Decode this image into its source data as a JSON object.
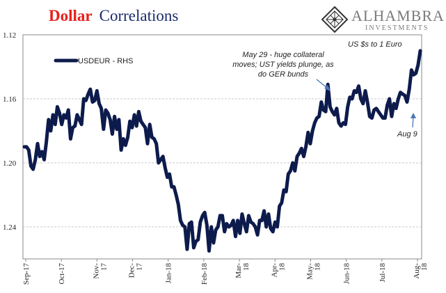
{
  "header": {
    "title_part1": "Dollar",
    "title_part2": "Correlations",
    "brand_name": "ALHAMBRA",
    "brand_sub": "INVESTMENTS"
  },
  "colors": {
    "line": "#0d1b4c",
    "title_red": "#e8211c",
    "title_blue": "#1a2b6b",
    "arrow": "#4a78b8"
  },
  "chart_data": {
    "type": "line",
    "title": "Dollar Correlations",
    "subtitle": "US $s to 1 Euro",
    "y_axis_side": "left",
    "y_inverted": true,
    "ylim": [
      1.12,
      1.26
    ],
    "y_ticks": [
      "1.12",
      "1.16",
      "1.20",
      "1.24"
    ],
    "x_ticks": [
      "Sep-17",
      "Oct-17",
      "Nov-17",
      "Dec-17",
      "Jan-18",
      "Feb-18",
      "Mar-18",
      "Apr-18",
      "May-18",
      "Jun-18",
      "Jul-18",
      "Aug-18"
    ],
    "grid": "horizontal dashed",
    "legend": "top-left",
    "series": [
      {
        "name": "USDEUR - RHS",
        "values": [
          1.19,
          1.19,
          1.192,
          1.202,
          1.204,
          1.198,
          1.188,
          1.196,
          1.193,
          1.198,
          1.187,
          1.173,
          1.18,
          1.17,
          1.176,
          1.165,
          1.169,
          1.176,
          1.17,
          1.172,
          1.167,
          1.185,
          1.178,
          1.177,
          1.17,
          1.173,
          1.176,
          1.16,
          1.161,
          1.157,
          1.154,
          1.162,
          1.161,
          1.155,
          1.163,
          1.166,
          1.179,
          1.167,
          1.169,
          1.173,
          1.182,
          1.171,
          1.179,
          1.173,
          1.192,
          1.185,
          1.189,
          1.184,
          1.174,
          1.178,
          1.17,
          1.177,
          1.168,
          1.174,
          1.176,
          1.178,
          1.188,
          1.176,
          1.184,
          1.185,
          1.188,
          1.2,
          1.198,
          1.196,
          1.203,
          1.209,
          1.207,
          1.215,
          1.215,
          1.22,
          1.226,
          1.236,
          1.239,
          1.24,
          1.254,
          1.238,
          1.237,
          1.253,
          1.249,
          1.248,
          1.237,
          1.233,
          1.231,
          1.239,
          1.255,
          1.24,
          1.25,
          1.242,
          1.24,
          1.233,
          1.233,
          1.243,
          1.238,
          1.24,
          1.239,
          1.236,
          1.246,
          1.236,
          1.244,
          1.232,
          1.238,
          1.243,
          1.233,
          1.237,
          1.238,
          1.24,
          1.245,
          1.236,
          1.236,
          1.23,
          1.24,
          1.232,
          1.241,
          1.243,
          1.237,
          1.24,
          1.227,
          1.225,
          1.217,
          1.218,
          1.207,
          1.205,
          1.2,
          1.205,
          1.196,
          1.194,
          1.191,
          1.196,
          1.19,
          1.181,
          1.188,
          1.18,
          1.175,
          1.172,
          1.171,
          1.162,
          1.167,
          1.168,
          1.151,
          1.165,
          1.168,
          1.17,
          1.166,
          1.175,
          1.177,
          1.175,
          1.176,
          1.165,
          1.159,
          1.16,
          1.155,
          1.156,
          1.152,
          1.16,
          1.163,
          1.155,
          1.162,
          1.171,
          1.172,
          1.167,
          1.166,
          1.168,
          1.17,
          1.172,
          1.172,
          1.164,
          1.16,
          1.171,
          1.163,
          1.166,
          1.16,
          1.156,
          1.157,
          1.158,
          1.162,
          1.154,
          1.142,
          1.145,
          1.144,
          1.139,
          1.13
        ]
      }
    ],
    "annotations": [
      {
        "text": "May 29 - huge collateral moves; UST yields plunge, as do GER bunds"
      },
      {
        "text": "Aug 9"
      },
      {
        "text": "US $s to 1 Euro"
      }
    ]
  },
  "annotations_text": {
    "may29_line1": "May 29 - huge collateral",
    "may29_line2": "moves; UST yields plunge, as",
    "may29_line3": "do GER bunds",
    "aug9": "Aug 9",
    "units": "US $s to 1 Euro",
    "legend_label": "USDEUR - RHS"
  }
}
